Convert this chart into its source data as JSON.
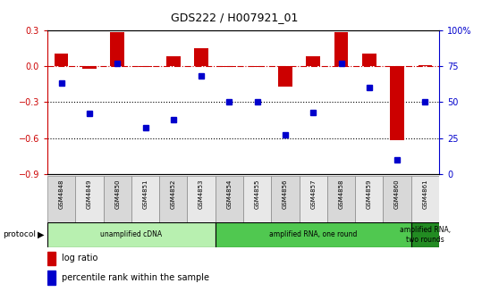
{
  "title": "GDS222 / H007921_01",
  "samples": [
    "GSM4848",
    "GSM4849",
    "GSM4850",
    "GSM4851",
    "GSM4852",
    "GSM4853",
    "GSM4854",
    "GSM4855",
    "GSM4856",
    "GSM4857",
    "GSM4858",
    "GSM4859",
    "GSM4860",
    "GSM4861"
  ],
  "log_ratio": [
    0.1,
    -0.02,
    0.28,
    -0.01,
    0.08,
    0.15,
    -0.01,
    -0.01,
    -0.17,
    0.08,
    0.28,
    0.1,
    -0.62,
    0.01
  ],
  "percentile_rank": [
    63,
    42,
    77,
    32,
    38,
    68,
    50,
    50,
    27,
    43,
    77,
    60,
    10,
    50
  ],
  "ylim_left": [
    -0.9,
    0.3
  ],
  "ylim_right": [
    0,
    100
  ],
  "left_ticks": [
    0.3,
    0.0,
    -0.3,
    -0.6,
    -0.9
  ],
  "right_ticks": [
    100,
    75,
    50,
    25,
    0
  ],
  "right_tick_labels": [
    "100%",
    "75",
    "50",
    "25",
    "0"
  ],
  "dotted_lines": [
    -0.3,
    -0.6
  ],
  "protocol_groups": [
    {
      "label": "unamplified cDNA",
      "start": 0,
      "end": 6,
      "color": "#b8f0b0"
    },
    {
      "label": "amplified RNA, one round",
      "start": 6,
      "end": 13,
      "color": "#50c850"
    },
    {
      "label": "amplified RNA,\ntwo rounds",
      "start": 13,
      "end": 14,
      "color": "#228B22"
    }
  ],
  "bar_color_red": "#CC0000",
  "dot_color_blue": "#0000CC",
  "legend_items": [
    "log ratio",
    "percentile rank within the sample"
  ],
  "background_color": "#ffffff",
  "axis_label_color_left": "#CC0000",
  "axis_label_color_right": "#0000CC",
  "sample_bg_even": "#d8d8d8",
  "sample_bg_odd": "#e8e8e8"
}
